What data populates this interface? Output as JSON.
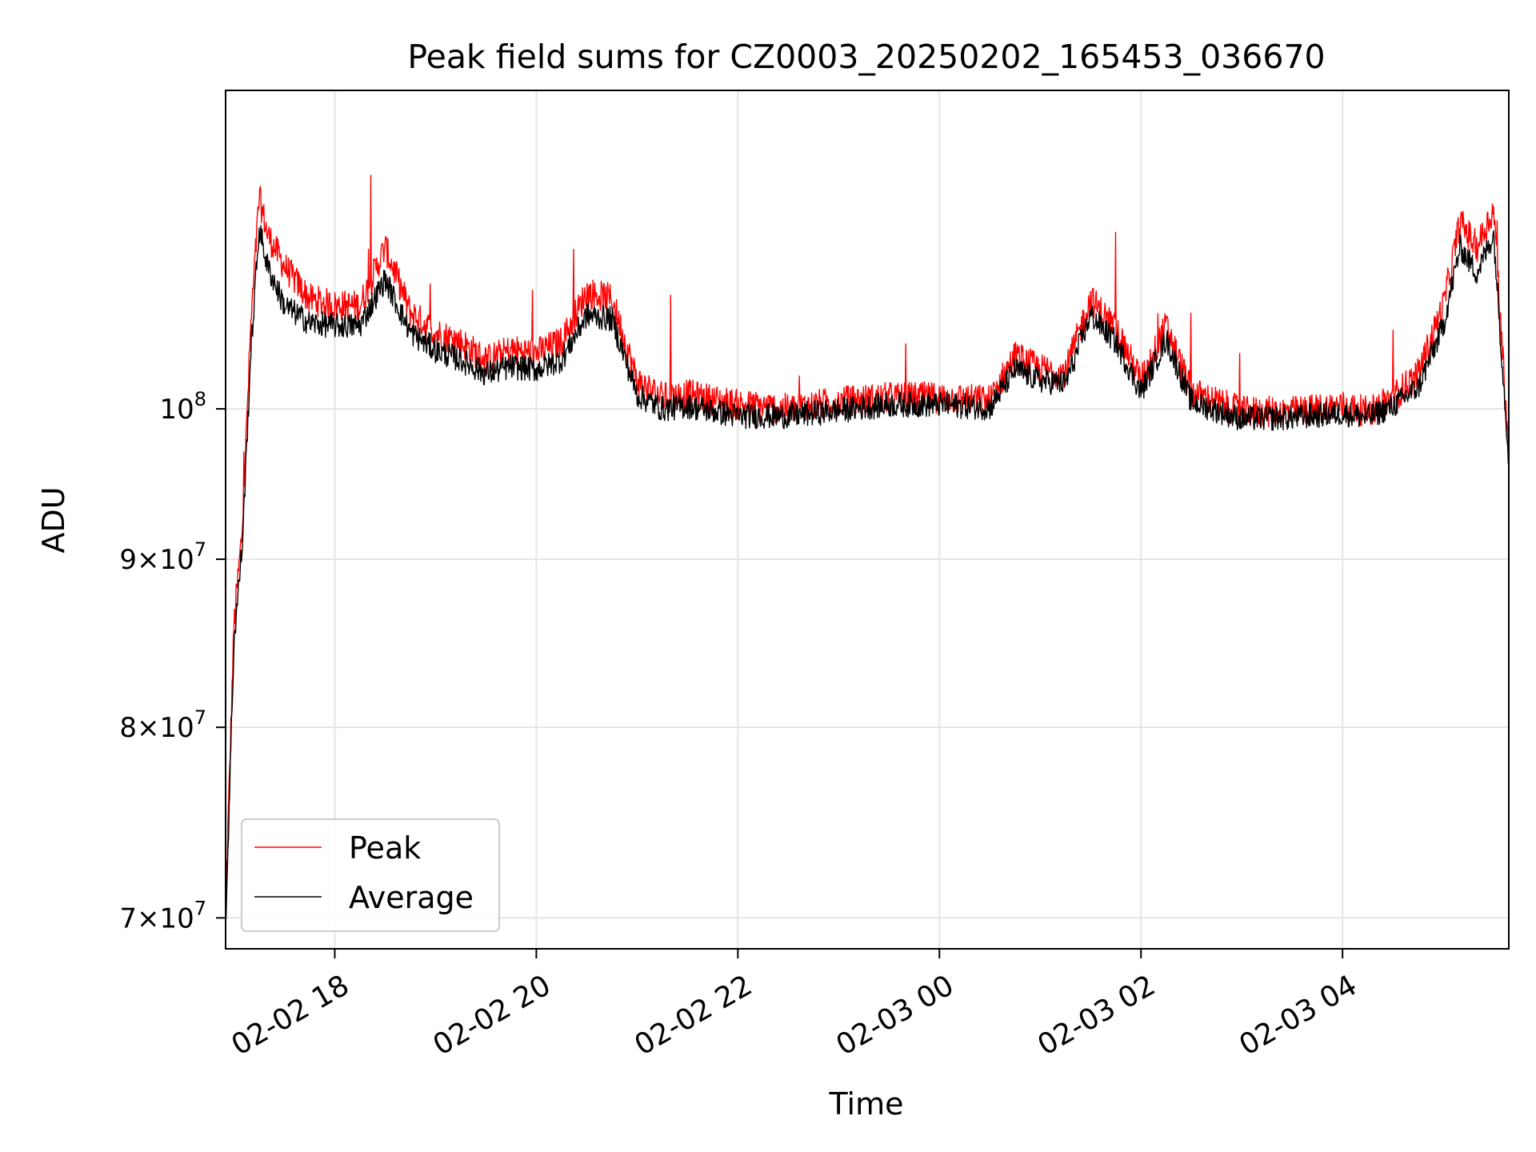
{
  "chart_data": {
    "type": "line",
    "title": "Peak field sums for CZ0003_20250202_165453_036670",
    "xlabel": "Time",
    "ylabel": "ADU",
    "x_axis": "datetime (hours)",
    "xlim": [
      "02-02 16:55",
      "02-03 05:39"
    ],
    "yscale": "log",
    "ylim": [
      68500000,
      125000000
    ],
    "x_ticks": [
      "02-02 18",
      "02-02 20",
      "02-02 22",
      "02-03 00",
      "02-03 02",
      "02-03 04"
    ],
    "y_ticks": [
      {
        "value": 70000000,
        "mantissa": "7",
        "exponent": "7",
        "style": "mult"
      },
      {
        "value": 80000000,
        "mantissa": "8",
        "exponent": "7",
        "style": "mult"
      },
      {
        "value": 90000000,
        "mantissa": "9",
        "exponent": "7",
        "style": "mult"
      },
      {
        "value": 100000000,
        "mantissa": "10",
        "exponent": "8",
        "style": "pow"
      }
    ],
    "grid": true,
    "legend_position": "lower-left",
    "series": [
      {
        "name": "Peak",
        "color": "#ff0000",
        "x": [
          "02-02 16:55",
          "02-02 17:00",
          "02-02 17:05",
          "02-02 17:10",
          "02-02 17:15",
          "02-02 17:20",
          "02-02 17:30",
          "02-02 17:45",
          "02-02 18:00",
          "02-02 18:15",
          "02-02 18:30",
          "02-02 18:45",
          "02-02 19:00",
          "02-02 19:15",
          "02-02 19:30",
          "02-02 19:45",
          "02-02 20:00",
          "02-02 20:15",
          "02-02 20:30",
          "02-02 20:45",
          "02-02 21:00",
          "02-02 21:15",
          "02-02 21:30",
          "02-02 22:00",
          "02-02 22:30",
          "02-02 23:00",
          "02-02 23:30",
          "02-03 00:00",
          "02-03 00:30",
          "02-03 00:45",
          "02-03 01:00",
          "02-03 01:15",
          "02-03 01:30",
          "02-03 01:45",
          "02-03 02:00",
          "02-03 02:15",
          "02-03 02:30",
          "02-03 03:00",
          "02-03 03:30",
          "02-03 04:00",
          "02-03 04:15",
          "02-03 04:30",
          "02-03 04:45",
          "02-03 05:00",
          "02-03 05:10",
          "02-03 05:20",
          "02-03 05:30",
          "02-03 05:39"
        ],
        "y": [
          70500000,
          86000000,
          92000000,
          106000000,
          116000000,
          113000000,
          110500000,
          108000000,
          107500000,
          107500000,
          112000000,
          107000000,
          105500000,
          104800000,
          103500000,
          104200000,
          104000000,
          104800000,
          108500000,
          108000000,
          102000000,
          100800000,
          101000000,
          100300000,
          100000000,
          100500000,
          100800000,
          100800000,
          100600000,
          103800000,
          102800000,
          102600000,
          108000000,
          105800000,
          102000000,
          106000000,
          101200000,
          99800000,
          99800000,
          100200000,
          99800000,
          100800000,
          102500000,
          107500000,
          114000000,
          112000000,
          115000000,
          97000000
        ]
      },
      {
        "name": "Average",
        "color": "#000000",
        "x": [
          "02-02 16:55",
          "02-02 17:00",
          "02-02 17:05",
          "02-02 17:10",
          "02-02 17:15",
          "02-02 17:20",
          "02-02 17:30",
          "02-02 17:45",
          "02-02 18:00",
          "02-02 18:15",
          "02-02 18:30",
          "02-02 18:45",
          "02-02 19:00",
          "02-02 19:15",
          "02-02 19:30",
          "02-02 19:45",
          "02-02 20:00",
          "02-02 20:15",
          "02-02 20:30",
          "02-02 20:45",
          "02-02 21:00",
          "02-02 21:15",
          "02-02 21:30",
          "02-02 22:00",
          "02-02 22:30",
          "02-02 23:00",
          "02-02 23:30",
          "02-03 00:00",
          "02-03 00:30",
          "02-03 00:45",
          "02-03 01:00",
          "02-03 01:15",
          "02-03 01:30",
          "02-03 01:45",
          "02-03 02:00",
          "02-03 02:15",
          "02-03 02:30",
          "02-03 03:00",
          "02-03 03:30",
          "02-03 04:00",
          "02-03 04:15",
          "02-03 04:30",
          "02-03 04:45",
          "02-03 05:00",
          "02-03 05:10",
          "02-03 05:20",
          "02-03 05:30",
          "02-03 05:39"
        ],
        "y": [
          69500000,
          85000000,
          91000000,
          104000000,
          113500000,
          110500000,
          107500000,
          106200000,
          106000000,
          106000000,
          109500000,
          105500000,
          104200000,
          103500000,
          102500000,
          103000000,
          102800000,
          103500000,
          106800000,
          106500000,
          101000000,
          100000000,
          100200000,
          99500000,
          99500000,
          99900000,
          100300000,
          100300000,
          100100000,
          102800000,
          102000000,
          101800000,
          106800000,
          104800000,
          101200000,
          105000000,
          100500000,
          99300000,
          99400000,
          99700000,
          99400000,
          100200000,
          101500000,
          106000000,
          112000000,
          110000000,
          113000000,
          96500000
        ]
      }
    ]
  }
}
